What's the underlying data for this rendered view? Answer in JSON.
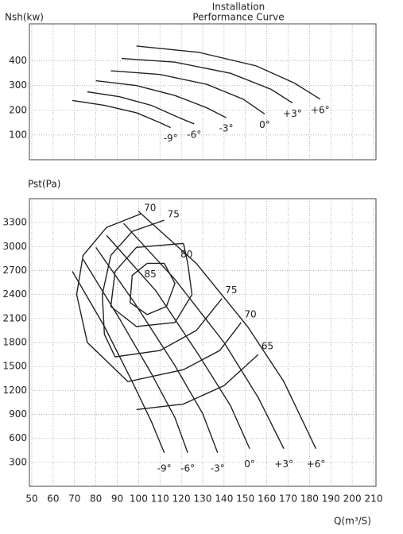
{
  "chart_data": [
    {
      "type": "line",
      "title": "Installation",
      "subtitle": "Performance Curve",
      "y_label": "Nsh(kw)",
      "xlim": [
        50,
        210
      ],
      "xticks": [
        50,
        60,
        70,
        80,
        90,
        100,
        110,
        120,
        130,
        140,
        150,
        160,
        170,
        180,
        190,
        200,
        210
      ],
      "ylim": [
        0,
        550
      ],
      "yticks": [
        100,
        200,
        300,
        400
      ],
      "grid": true,
      "series": [
        {
          "name": "-9°",
          "color": "#222222",
          "x": [
            69,
            84,
            99,
            110,
            115
          ],
          "values": [
            240,
            220,
            190,
            150,
            130
          ]
        },
        {
          "name": "-6°",
          "color": "#222222",
          "x": [
            76,
            91,
            106,
            119,
            126
          ],
          "values": [
            275,
            255,
            220,
            170,
            145
          ]
        },
        {
          "name": "-3°",
          "color": "#222222",
          "x": [
            80,
            99,
            117,
            132,
            141
          ],
          "values": [
            320,
            300,
            260,
            210,
            170
          ]
        },
        {
          "name": "0°",
          "color": "#222222",
          "x": [
            87,
            110,
            132,
            149,
            159
          ],
          "values": [
            360,
            345,
            305,
            245,
            185
          ]
        },
        {
          "name": "+3°",
          "color": "#222222",
          "x": [
            92,
            117,
            143,
            162,
            172
          ],
          "values": [
            410,
            395,
            350,
            285,
            230
          ]
        },
        {
          "name": "+6°",
          "color": "#222222",
          "x": [
            99,
            128,
            155,
            173,
            185
          ],
          "values": [
            460,
            435,
            380,
            310,
            245
          ]
        }
      ]
    },
    {
      "type": "line",
      "y_label": "Pst(Pa)",
      "x_label": "Q(m³/S)",
      "xlim": [
        50,
        210
      ],
      "xticks": [
        50,
        60,
        70,
        80,
        90,
        100,
        110,
        120,
        130,
        140,
        150,
        160,
        170,
        180,
        190,
        200,
        210
      ],
      "ylim": [
        0,
        3600
      ],
      "yticks": [
        300,
        600,
        900,
        1200,
        1500,
        1800,
        2100,
        2400,
        2700,
        3000,
        3300
      ],
      "grid": true,
      "series": [
        {
          "name": "-9°",
          "color": "#222222",
          "x": [
            69,
            84,
            97,
            106,
            112
          ],
          "values": [
            2690,
            2000,
            1310,
            810,
            420
          ]
        },
        {
          "name": "-6°",
          "color": "#222222",
          "x": [
            74,
            91,
            106,
            117,
            123
          ],
          "values": [
            2840,
            2100,
            1410,
            860,
            420
          ]
        },
        {
          "name": "-3°",
          "color": "#222222",
          "x": [
            80,
            98,
            117,
            130,
            137
          ],
          "values": [
            2990,
            2300,
            1510,
            910,
            420
          ]
        },
        {
          "name": "0°",
          "color": "#222222",
          "x": [
            85,
            108,
            128,
            143,
            152
          ],
          "values": [
            3140,
            2450,
            1650,
            1010,
            470
          ]
        },
        {
          "name": "+3°",
          "color": "#222222",
          "x": [
            93,
            117,
            140,
            156,
            168
          ],
          "values": [
            3290,
            2590,
            1800,
            1110,
            470
          ]
        },
        {
          "name": "+6°",
          "color": "#222222",
          "x": [
            100,
            127,
            151,
            168,
            183
          ],
          "values": [
            3440,
            2790,
            2000,
            1310,
            470
          ]
        }
      ],
      "contours": [
        {
          "name": "85",
          "color": "#222222",
          "x": [
            104,
            97,
            96,
            104,
            113,
            117,
            112,
            104
          ],
          "values": [
            2790,
            2640,
            2300,
            2150,
            2250,
            2540,
            2790,
            2790
          ]
        },
        {
          "name": "80",
          "color": "#222222",
          "x": [
            121,
            99,
            89,
            87,
            99,
            117,
            125,
            123,
            121
          ],
          "values": [
            3040,
            2990,
            2690,
            2250,
            2000,
            2050,
            2400,
            2790,
            3040
          ]
        },
        {
          "name": "75",
          "color": "#222222",
          "x": [
            112,
            97,
            87,
            83,
            84,
            89,
            110,
            127,
            139
          ],
          "values": [
            3330,
            3190,
            2890,
            2400,
            1900,
            1620,
            1700,
            1950,
            2350
          ]
        },
        {
          "name": "70",
          "color": "#222222",
          "x": [
            101,
            85,
            74,
            71,
            76,
            95,
            121,
            138,
            148
          ],
          "values": [
            3410,
            3240,
            2890,
            2400,
            1800,
            1310,
            1460,
            1700,
            2050
          ]
        },
        {
          "name": "65",
          "color": "#222222",
          "x": [
            99,
            121,
            140,
            156
          ],
          "values": [
            960,
            1030,
            1260,
            1650
          ]
        }
      ]
    }
  ]
}
